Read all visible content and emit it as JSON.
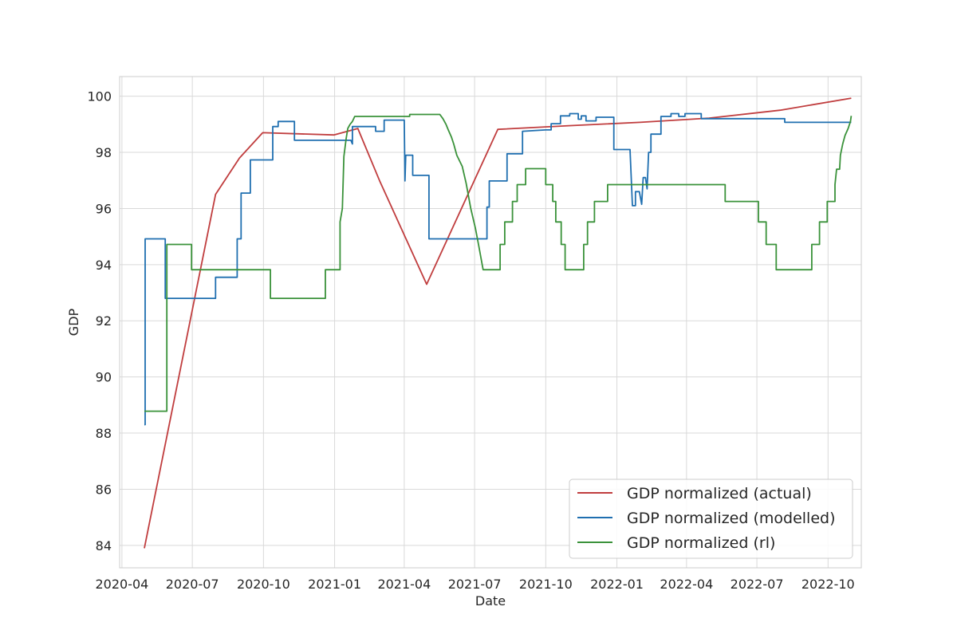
{
  "chart_data": {
    "type": "line",
    "title": "",
    "xlabel": "Date",
    "ylabel": "GDP",
    "xlim": [
      "2020-03-29",
      "2022-11-13"
    ],
    "ylim": [
      83.2,
      100.7
    ],
    "x_ticks": [
      "2020-04",
      "2020-07",
      "2020-10",
      "2021-01",
      "2021-04",
      "2021-07",
      "2021-10",
      "2022-01",
      "2022-04",
      "2022-07",
      "2022-10"
    ],
    "y_ticks": [
      84,
      86,
      88,
      90,
      92,
      94,
      96,
      98,
      100
    ],
    "grid": true,
    "legend_position": "lower-right",
    "colors": {
      "actual": "#c03d3e",
      "modelled": "#1f6fb0",
      "rl": "#3a923a",
      "grid": "#d9d9d9",
      "axes_edge": "#cccccc"
    },
    "series": [
      {
        "name": "GDP normalized (actual)",
        "color": "#c03d3e",
        "points": [
          [
            "2020-04-30",
            83.9
          ],
          [
            "2020-07-31",
            96.5
          ],
          [
            "2020-08-31",
            97.8
          ],
          [
            "2020-09-30",
            98.7
          ],
          [
            "2020-12-31",
            98.62
          ],
          [
            "2021-01-31",
            98.85
          ],
          [
            "2021-02-28",
            97.0
          ],
          [
            "2021-04-30",
            93.3
          ],
          [
            "2021-07-31",
            98.82
          ],
          [
            "2021-10-31",
            98.95
          ],
          [
            "2022-01-31",
            99.07
          ],
          [
            "2022-04-30",
            99.22
          ],
          [
            "2022-07-31",
            99.5
          ],
          [
            "2022-10-31",
            99.93
          ]
        ]
      },
      {
        "name": "GDP normalized (modelled)",
        "color": "#1f6fb0",
        "points": [
          [
            "2020-04-30",
            88.3
          ],
          [
            "2020-05-01",
            88.3
          ],
          [
            "2020-05-01",
            94.92
          ],
          [
            "2020-05-27",
            94.92
          ],
          [
            "2020-05-27",
            92.8
          ],
          [
            "2020-07-31",
            92.8
          ],
          [
            "2020-07-31",
            93.55
          ],
          [
            "2020-08-28",
            93.55
          ],
          [
            "2020-08-28",
            94.92
          ],
          [
            "2020-09-02",
            94.92
          ],
          [
            "2020-09-02",
            96.55
          ],
          [
            "2020-09-14",
            96.55
          ],
          [
            "2020-09-14",
            97.73
          ],
          [
            "2020-10-13",
            97.73
          ],
          [
            "2020-10-13",
            98.92
          ],
          [
            "2020-10-20",
            98.92
          ],
          [
            "2020-10-20",
            99.1
          ],
          [
            "2020-11-10",
            99.1
          ],
          [
            "2020-11-10",
            98.43
          ],
          [
            "2021-01-22",
            98.43
          ],
          [
            "2021-01-24",
            98.3
          ],
          [
            "2021-01-24",
            98.92
          ],
          [
            "2021-02-23",
            98.92
          ],
          [
            "2021-02-23",
            98.75
          ],
          [
            "2021-03-06",
            98.75
          ],
          [
            "2021-03-06",
            99.15
          ],
          [
            "2021-04-01",
            99.15
          ],
          [
            "2021-04-02",
            96.98
          ],
          [
            "2021-04-03",
            97.9
          ],
          [
            "2021-04-12",
            97.9
          ],
          [
            "2021-04-12",
            97.18
          ],
          [
            "2021-05-03",
            97.18
          ],
          [
            "2021-05-03",
            94.92
          ],
          [
            "2021-07-17",
            94.92
          ],
          [
            "2021-07-17",
            96.05
          ],
          [
            "2021-07-20",
            96.05
          ],
          [
            "2021-07-20",
            96.98
          ],
          [
            "2021-08-12",
            96.98
          ],
          [
            "2021-08-12",
            97.95
          ],
          [
            "2021-09-01",
            97.95
          ],
          [
            "2021-09-01",
            98.75
          ],
          [
            "2021-10-01",
            98.8
          ],
          [
            "2021-10-08",
            98.8
          ],
          [
            "2021-10-08",
            99.02
          ],
          [
            "2021-10-20",
            99.02
          ],
          [
            "2021-10-20",
            99.3
          ],
          [
            "2021-11-01",
            99.3
          ],
          [
            "2021-11-01",
            99.38
          ],
          [
            "2021-11-12",
            99.38
          ],
          [
            "2021-11-12",
            99.18
          ],
          [
            "2021-11-16",
            99.18
          ],
          [
            "2021-11-16",
            99.3
          ],
          [
            "2021-11-22",
            99.3
          ],
          [
            "2021-11-22",
            99.12
          ],
          [
            "2021-12-05",
            99.12
          ],
          [
            "2021-12-05",
            99.25
          ],
          [
            "2021-12-28",
            99.25
          ],
          [
            "2021-12-28",
            98.1
          ],
          [
            "2022-01-18",
            98.1
          ],
          [
            "2022-01-21",
            96.1
          ],
          [
            "2022-01-25",
            96.1
          ],
          [
            "2022-01-25",
            96.6
          ],
          [
            "2022-01-30",
            96.6
          ],
          [
            "2022-02-02",
            96.15
          ],
          [
            "2022-02-04",
            97.1
          ],
          [
            "2022-02-07",
            97.1
          ],
          [
            "2022-02-09",
            96.7
          ],
          [
            "2022-02-11",
            98.0
          ],
          [
            "2022-02-14",
            98.0
          ],
          [
            "2022-02-14",
            98.65
          ],
          [
            "2022-02-27",
            98.65
          ],
          [
            "2022-02-27",
            99.28
          ],
          [
            "2022-03-12",
            99.28
          ],
          [
            "2022-03-12",
            99.38
          ],
          [
            "2022-03-22",
            99.38
          ],
          [
            "2022-03-22",
            99.28
          ],
          [
            "2022-03-30",
            99.28
          ],
          [
            "2022-03-30",
            99.38
          ],
          [
            "2022-04-20",
            99.38
          ],
          [
            "2022-04-20",
            99.2
          ],
          [
            "2022-08-06",
            99.2
          ],
          [
            "2022-08-06",
            99.07
          ],
          [
            "2022-10-31",
            99.07
          ]
        ]
      },
      {
        "name": "GDP normalized (rl)",
        "color": "#3a923a",
        "points": [
          [
            "2020-04-30",
            88.78
          ],
          [
            "2020-05-29",
            88.78
          ],
          [
            "2020-05-29",
            94.72
          ],
          [
            "2020-06-30",
            94.72
          ],
          [
            "2020-06-30",
            93.82
          ],
          [
            "2020-10-10",
            93.82
          ],
          [
            "2020-10-10",
            92.8
          ],
          [
            "2020-12-20",
            92.8
          ],
          [
            "2020-12-20",
            93.82
          ],
          [
            "2021-01-08",
            93.82
          ],
          [
            "2021-01-08",
            95.52
          ],
          [
            "2021-01-11",
            96.0
          ],
          [
            "2021-01-13",
            97.85
          ],
          [
            "2021-01-16",
            98.5
          ],
          [
            "2021-01-18",
            98.85
          ],
          [
            "2021-01-21",
            99.0
          ],
          [
            "2021-01-24",
            99.1
          ],
          [
            "2021-01-27",
            99.28
          ],
          [
            "2021-04-08",
            99.28
          ],
          [
            "2021-04-08",
            99.35
          ],
          [
            "2021-05-17",
            99.35
          ],
          [
            "2021-05-21",
            99.2
          ],
          [
            "2021-05-25",
            99.0
          ],
          [
            "2021-05-28",
            98.8
          ],
          [
            "2021-06-01",
            98.55
          ],
          [
            "2021-06-04",
            98.3
          ],
          [
            "2021-06-08",
            97.9
          ],
          [
            "2021-06-15",
            97.5
          ],
          [
            "2021-06-20",
            96.9
          ],
          [
            "2021-06-26",
            96.0
          ],
          [
            "2021-07-02",
            95.3
          ],
          [
            "2021-07-06",
            94.72
          ],
          [
            "2021-07-12",
            93.82
          ],
          [
            "2021-08-03",
            93.82
          ],
          [
            "2021-08-03",
            94.72
          ],
          [
            "2021-08-09",
            94.72
          ],
          [
            "2021-08-09",
            95.52
          ],
          [
            "2021-08-19",
            95.52
          ],
          [
            "2021-08-19",
            96.25
          ],
          [
            "2021-08-25",
            96.25
          ],
          [
            "2021-08-25",
            96.85
          ],
          [
            "2021-09-05",
            96.85
          ],
          [
            "2021-09-05",
            97.42
          ],
          [
            "2021-10-01",
            97.42
          ],
          [
            "2021-10-01",
            96.85
          ],
          [
            "2021-10-10",
            96.85
          ],
          [
            "2021-10-10",
            96.25
          ],
          [
            "2021-10-14",
            96.25
          ],
          [
            "2021-10-14",
            95.52
          ],
          [
            "2021-10-21",
            95.52
          ],
          [
            "2021-10-21",
            94.72
          ],
          [
            "2021-10-26",
            94.72
          ],
          [
            "2021-10-26",
            93.82
          ],
          [
            "2021-11-19",
            93.82
          ],
          [
            "2021-11-19",
            94.72
          ],
          [
            "2021-11-24",
            94.72
          ],
          [
            "2021-11-24",
            95.52
          ],
          [
            "2021-12-03",
            95.52
          ],
          [
            "2021-12-03",
            96.25
          ],
          [
            "2021-12-20",
            96.25
          ],
          [
            "2021-12-20",
            96.85
          ],
          [
            "2022-05-21",
            96.85
          ],
          [
            "2022-05-21",
            96.25
          ],
          [
            "2022-07-03",
            96.25
          ],
          [
            "2022-07-03",
            95.52
          ],
          [
            "2022-07-13",
            95.52
          ],
          [
            "2022-07-13",
            94.72
          ],
          [
            "2022-07-26",
            94.72
          ],
          [
            "2022-07-26",
            93.82
          ],
          [
            "2022-09-10",
            93.82
          ],
          [
            "2022-09-10",
            94.72
          ],
          [
            "2022-09-20",
            94.72
          ],
          [
            "2022-09-20",
            95.52
          ],
          [
            "2022-09-30",
            95.52
          ],
          [
            "2022-09-30",
            96.25
          ],
          [
            "2022-10-10",
            96.25
          ],
          [
            "2022-10-10",
            96.85
          ],
          [
            "2022-10-12",
            97.4
          ],
          [
            "2022-10-16",
            97.4
          ],
          [
            "2022-10-17",
            97.9
          ],
          [
            "2022-10-20",
            98.3
          ],
          [
            "2022-10-23",
            98.6
          ],
          [
            "2022-10-27",
            98.85
          ],
          [
            "2022-10-30",
            99.1
          ],
          [
            "2022-10-31",
            99.3
          ]
        ]
      }
    ]
  }
}
